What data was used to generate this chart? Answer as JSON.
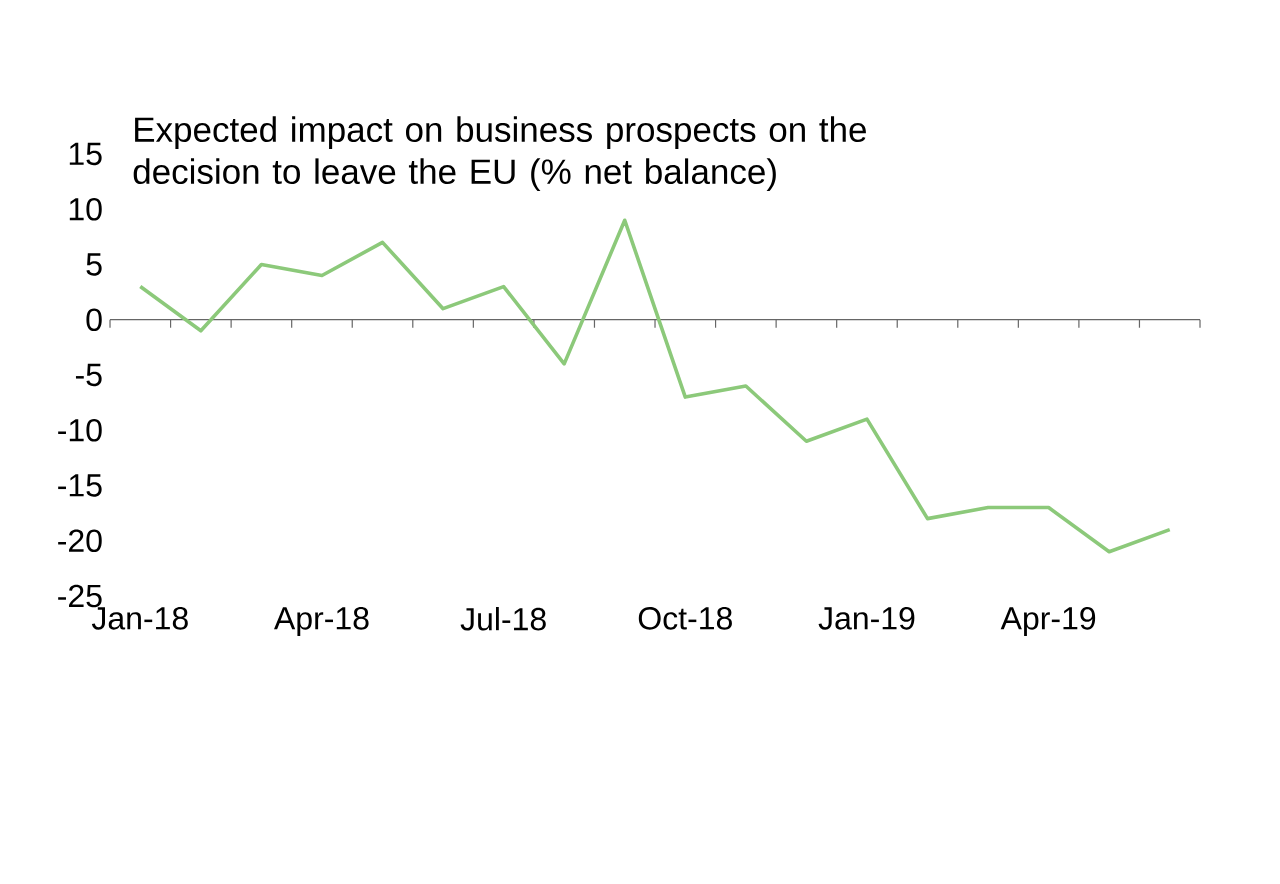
{
  "chart_data": {
    "type": "line",
    "title": "Expected impact on business prospects on the decision to leave the EU (% net balance)",
    "categories": [
      "Jan-18",
      null,
      null,
      "Apr-18",
      null,
      null,
      "Jul-18",
      null,
      null,
      "Oct-18",
      null,
      null,
      "Jan-19",
      null,
      null,
      "Apr-19",
      null,
      null
    ],
    "values": [
      3,
      -1,
      5,
      4,
      7,
      1,
      3,
      -4,
      9,
      -7,
      -6,
      -11,
      -9,
      -18,
      -17,
      -17,
      -21,
      -19
    ],
    "color": "#8cc97a",
    "ylim": [
      -25,
      15
    ],
    "yticks": [
      -25,
      -20,
      -15,
      -10,
      -5,
      0,
      5,
      10,
      15
    ]
  }
}
